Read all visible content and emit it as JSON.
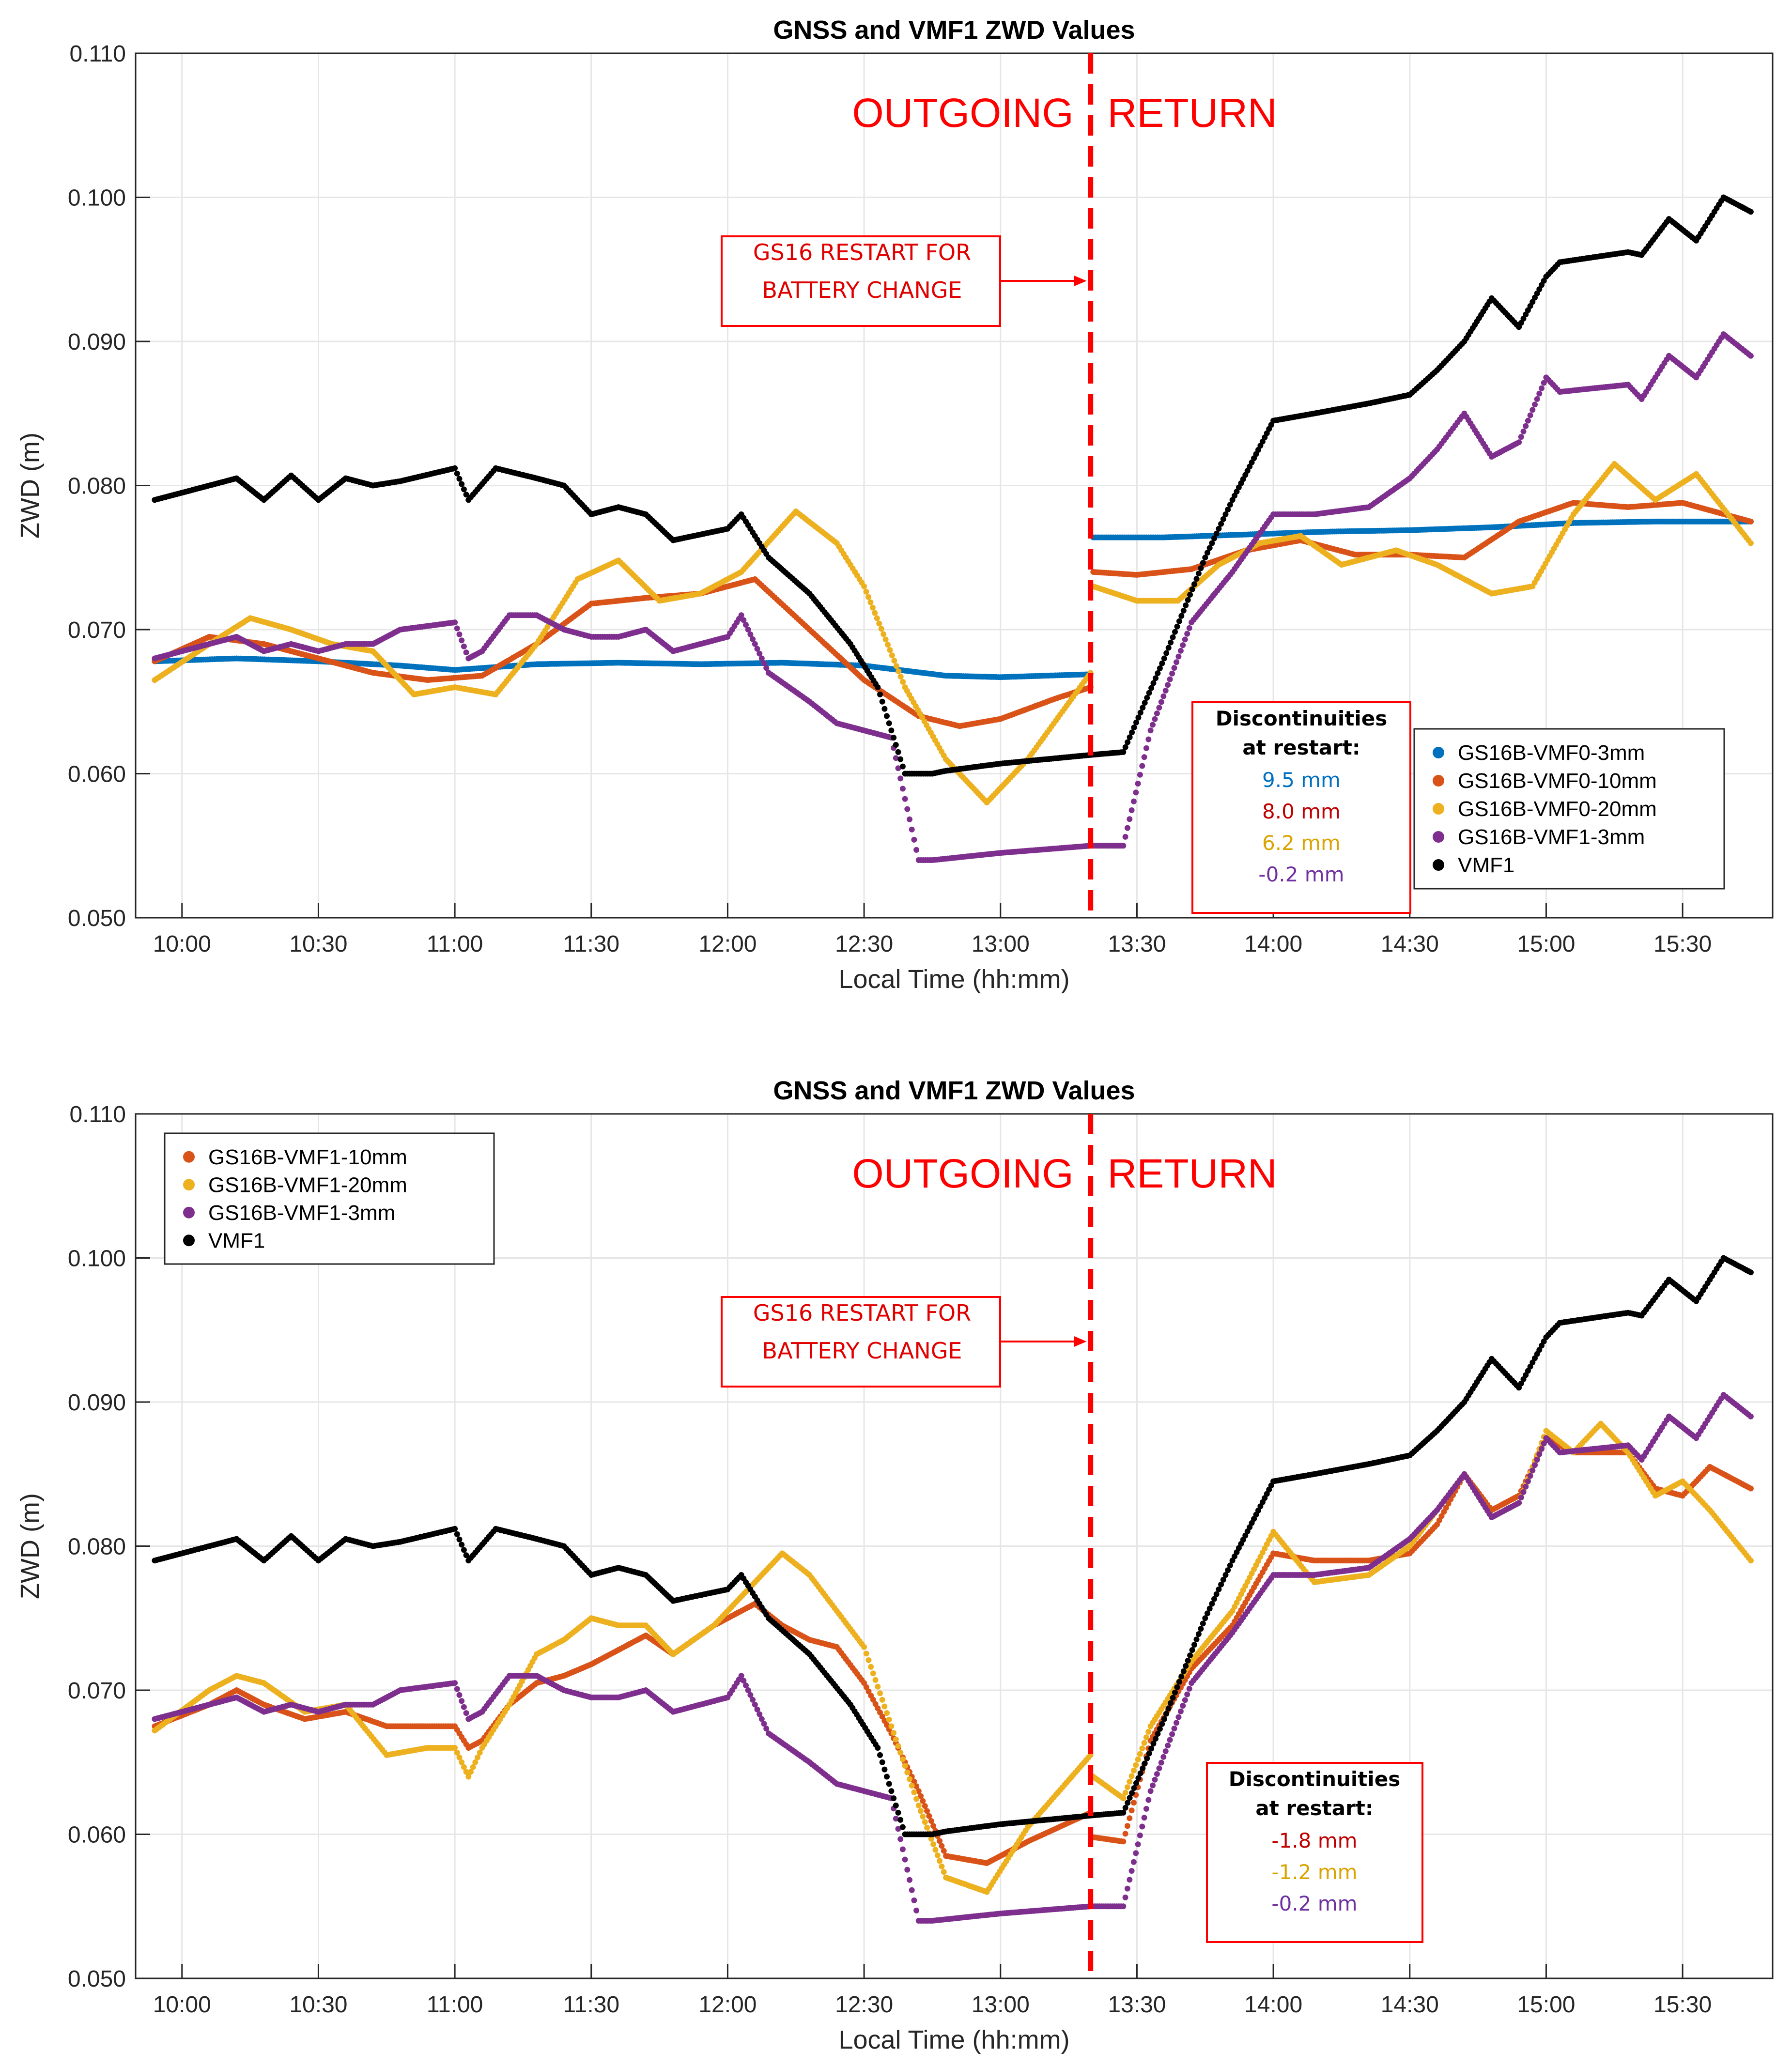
{
  "colors": {
    "GS16B-VMF0-3mm": "#0072BD",
    "GS16B-VMF0-10mm": "#D95319",
    "GS16B-VMF0-20mm": "#EDB120",
    "GS16B-VMF1-3mm": "#7E2F8E",
    "GS16B-VMF1-10mm": "#D95319",
    "GS16B-VMF1-20mm": "#EDB120",
    "VMF1": "#000000",
    "annotation_red": "#ff0000"
  },
  "chart_data": [
    {
      "type": "scatter",
      "title": "GNSS and VMF1 ZWD Values",
      "xlabel": "Local Time (hh:mm)",
      "ylabel": "ZWD (m)",
      "xlim": [
        9.83,
        15.83
      ],
      "ylim": [
        0.05,
        0.11
      ],
      "grid": true,
      "xticks": [
        "10:00",
        "10:30",
        "11:00",
        "11:30",
        "12:00",
        "12:30",
        "13:00",
        "13:30",
        "14:00",
        "14:30",
        "15:00",
        "15:30"
      ],
      "yticks": [
        "0.050",
        "0.060",
        "0.070",
        "0.080",
        "0.090",
        "0.100",
        "0.110"
      ],
      "phase_left": "OUTGOING",
      "phase_right": "RETURN",
      "restart_line_x": 13.33,
      "restart_note": [
        "GS16 RESTART FOR",
        "BATTERY CHANGE"
      ],
      "discontinuity_title": [
        "Discontinuities",
        "at restart:"
      ],
      "discontinuities": [
        {
          "series": "GS16B-VMF0-3mm",
          "text": "9.5 mm"
        },
        {
          "series": "GS16B-VMF0-10mm",
          "text": "8.0 mm"
        },
        {
          "series": "GS16B-VMF0-20mm",
          "text": "6.2 mm"
        },
        {
          "series": "GS16B-VMF1-3mm",
          "text": "-0.2 mm"
        }
      ],
      "legend_position": "lower-right",
      "legend": [
        "GS16B-VMF0-3mm",
        "GS16B-VMF0-10mm",
        "GS16B-VMF0-20mm",
        "GS16B-VMF1-3mm",
        "VMF1"
      ],
      "series": [
        {
          "name": "VMF1",
          "x": [
            9.9,
            10.2,
            10.3,
            10.4,
            10.5,
            10.6,
            10.7,
            10.8,
            11.0,
            11.05,
            11.15,
            11.3,
            11.4,
            11.5,
            11.6,
            11.7,
            11.8,
            12.0,
            12.05,
            12.15,
            12.3,
            12.45,
            12.55,
            12.65,
            12.75,
            12.8,
            13.0,
            13.33,
            13.45,
            13.6,
            13.75,
            13.85,
            14.0,
            14.15,
            14.35,
            14.5,
            14.6,
            14.7,
            14.8,
            14.9,
            15.0,
            15.05,
            15.3,
            15.35,
            15.45,
            15.55,
            15.65,
            15.75
          ],
          "y": [
            0.079,
            0.0805,
            0.079,
            0.0807,
            0.079,
            0.0805,
            0.08,
            0.0803,
            0.0812,
            0.079,
            0.0812,
            0.0805,
            0.08,
            0.078,
            0.0785,
            0.078,
            0.0762,
            0.077,
            0.078,
            0.075,
            0.0725,
            0.069,
            0.066,
            0.06,
            0.06,
            0.0602,
            0.0607,
            0.0613,
            0.0615,
            0.068,
            0.075,
            0.079,
            0.0845,
            0.085,
            0.0857,
            0.0863,
            0.088,
            0.09,
            0.093,
            0.091,
            0.0945,
            0.0955,
            0.0962,
            0.096,
            0.0985,
            0.097,
            0.1,
            0.099
          ]
        },
        {
          "name": "GS16B-VMF1-3mm",
          "x": [
            9.9,
            10.1,
            10.2,
            10.3,
            10.4,
            10.5,
            10.6,
            10.7,
            10.8,
            11.0,
            11.05,
            11.1,
            11.2,
            11.3,
            11.4,
            11.5,
            11.6,
            11.7,
            11.8,
            12.0,
            12.05,
            12.15,
            12.3,
            12.4,
            12.5,
            12.6,
            12.7,
            12.75,
            13.0,
            13.33,
            13.45,
            13.55,
            13.7,
            13.85,
            14.0,
            14.15,
            14.35,
            14.5,
            14.6,
            14.7,
            14.8,
            14.9,
            15.0,
            15.05,
            15.3,
            15.35,
            15.45,
            15.55,
            15.65,
            15.75
          ],
          "y": [
            0.068,
            0.069,
            0.0695,
            0.0685,
            0.069,
            0.0685,
            0.069,
            0.069,
            0.07,
            0.0705,
            0.068,
            0.0685,
            0.071,
            0.071,
            0.07,
            0.0695,
            0.0695,
            0.07,
            0.0685,
            0.0695,
            0.071,
            0.067,
            0.065,
            0.0635,
            0.063,
            0.0625,
            0.054,
            0.054,
            0.0545,
            0.055,
            0.055,
            0.063,
            0.0705,
            0.074,
            0.078,
            0.078,
            0.0785,
            0.0805,
            0.0825,
            0.085,
            0.082,
            0.083,
            0.0875,
            0.0865,
            0.087,
            0.086,
            0.089,
            0.0875,
            0.0905,
            0.089
          ]
        },
        {
          "name": "GS16B-VMF0-3mm",
          "x": [
            9.9,
            10.2,
            10.5,
            10.8,
            11.0,
            11.3,
            11.6,
            11.9,
            12.2,
            12.5,
            12.8,
            13.0,
            13.33,
            13.34,
            13.6,
            13.9,
            14.2,
            14.5,
            14.8,
            15.1,
            15.4,
            15.75
          ],
          "y": [
            0.0678,
            0.068,
            0.0678,
            0.0675,
            0.0672,
            0.0676,
            0.0677,
            0.0676,
            0.0677,
            0.0675,
            0.0668,
            0.0667,
            0.0669,
            0.0764,
            0.0764,
            0.0766,
            0.0768,
            0.0769,
            0.0771,
            0.0774,
            0.0775,
            0.0775
          ]
        },
        {
          "name": "GS16B-VMF0-10mm",
          "x": [
            9.9,
            10.1,
            10.3,
            10.5,
            10.7,
            10.9,
            11.1,
            11.3,
            11.5,
            11.7,
            11.9,
            12.1,
            12.3,
            12.5,
            12.7,
            12.85,
            13.0,
            13.2,
            13.33,
            13.34,
            13.5,
            13.7,
            13.9,
            14.1,
            14.3,
            14.5,
            14.7,
            14.9,
            15.1,
            15.3,
            15.5,
            15.75
          ],
          "y": [
            0.0678,
            0.0695,
            0.069,
            0.068,
            0.067,
            0.0665,
            0.0668,
            0.069,
            0.0718,
            0.0722,
            0.0725,
            0.0735,
            0.07,
            0.0665,
            0.064,
            0.0633,
            0.0638,
            0.0652,
            0.066,
            0.074,
            0.0738,
            0.0742,
            0.0755,
            0.0762,
            0.0752,
            0.0752,
            0.075,
            0.0775,
            0.0788,
            0.0785,
            0.0788,
            0.0775
          ]
        },
        {
          "name": "GS16B-VMF0-20mm",
          "x": [
            9.9,
            10.1,
            10.25,
            10.4,
            10.55,
            10.7,
            10.85,
            11.0,
            11.15,
            11.3,
            11.45,
            11.6,
            11.75,
            11.9,
            12.05,
            12.25,
            12.4,
            12.5,
            12.65,
            12.8,
            12.95,
            13.1,
            13.33,
            13.34,
            13.5,
            13.65,
            13.8,
            13.95,
            14.1,
            14.25,
            14.45,
            14.6,
            14.8,
            14.95,
            15.1,
            15.25,
            15.4,
            15.55,
            15.75
          ],
          "y": [
            0.0665,
            0.069,
            0.0708,
            0.07,
            0.069,
            0.0685,
            0.0655,
            0.066,
            0.0655,
            0.069,
            0.0735,
            0.0748,
            0.072,
            0.0725,
            0.074,
            0.0782,
            0.076,
            0.073,
            0.066,
            0.061,
            0.058,
            0.061,
            0.067,
            0.073,
            0.072,
            0.072,
            0.0745,
            0.076,
            0.0765,
            0.0745,
            0.0755,
            0.0745,
            0.0725,
            0.073,
            0.078,
            0.0815,
            0.079,
            0.0808,
            0.076
          ]
        }
      ]
    },
    {
      "type": "scatter",
      "title": "GNSS and VMF1 ZWD Values",
      "xlabel": "Local Time (hh:mm)",
      "ylabel": "ZWD (m)",
      "xlim": [
        9.83,
        15.83
      ],
      "ylim": [
        0.05,
        0.11
      ],
      "grid": true,
      "xticks": [
        "10:00",
        "10:30",
        "11:00",
        "11:30",
        "12:00",
        "12:30",
        "13:00",
        "13:30",
        "14:00",
        "14:30",
        "15:00",
        "15:30"
      ],
      "yticks": [
        "0.050",
        "0.060",
        "0.070",
        "0.080",
        "0.090",
        "0.100",
        "0.110"
      ],
      "phase_left": "OUTGOING",
      "phase_right": "RETURN",
      "restart_line_x": 13.33,
      "restart_note": [
        "GS16 RESTART FOR",
        "BATTERY CHANGE"
      ],
      "discontinuity_title": [
        "Discontinuities",
        "at restart:"
      ],
      "discontinuities": [
        {
          "series": "GS16B-VMF1-10mm",
          "text": "-1.8 mm"
        },
        {
          "series": "GS16B-VMF1-20mm",
          "text": "-1.2 mm"
        },
        {
          "series": "GS16B-VMF1-3mm",
          "text": "-0.2 mm"
        }
      ],
      "legend_position": "upper-left",
      "legend": [
        "GS16B-VMF1-10mm",
        "GS16B-VMF1-20mm",
        "GS16B-VMF1-3mm",
        "VMF1"
      ],
      "series": [
        {
          "name": "VMF1",
          "x": [
            9.9,
            10.2,
            10.3,
            10.4,
            10.5,
            10.6,
            10.7,
            10.8,
            11.0,
            11.05,
            11.15,
            11.3,
            11.4,
            11.5,
            11.6,
            11.7,
            11.8,
            12.0,
            12.05,
            12.15,
            12.3,
            12.45,
            12.55,
            12.65,
            12.75,
            12.8,
            13.0,
            13.33,
            13.45,
            13.6,
            13.75,
            13.85,
            14.0,
            14.15,
            14.35,
            14.5,
            14.6,
            14.7,
            14.8,
            14.9,
            15.0,
            15.05,
            15.3,
            15.35,
            15.45,
            15.55,
            15.65,
            15.75
          ],
          "y": [
            0.079,
            0.0805,
            0.079,
            0.0807,
            0.079,
            0.0805,
            0.08,
            0.0803,
            0.0812,
            0.079,
            0.0812,
            0.0805,
            0.08,
            0.078,
            0.0785,
            0.078,
            0.0762,
            0.077,
            0.078,
            0.075,
            0.0725,
            0.069,
            0.066,
            0.06,
            0.06,
            0.0602,
            0.0607,
            0.0613,
            0.0615,
            0.068,
            0.075,
            0.079,
            0.0845,
            0.085,
            0.0857,
            0.0863,
            0.088,
            0.09,
            0.093,
            0.091,
            0.0945,
            0.0955,
            0.0962,
            0.096,
            0.0985,
            0.097,
            0.1,
            0.099
          ]
        },
        {
          "name": "GS16B-VMF1-3mm",
          "x": [
            9.9,
            10.1,
            10.2,
            10.3,
            10.4,
            10.5,
            10.6,
            10.7,
            10.8,
            11.0,
            11.05,
            11.1,
            11.2,
            11.3,
            11.4,
            11.5,
            11.6,
            11.7,
            11.8,
            12.0,
            12.05,
            12.15,
            12.3,
            12.4,
            12.5,
            12.6,
            12.7,
            12.75,
            13.0,
            13.33,
            13.45,
            13.55,
            13.7,
            13.85,
            14.0,
            14.15,
            14.35,
            14.5,
            14.6,
            14.7,
            14.8,
            14.9,
            15.0,
            15.05,
            15.3,
            15.35,
            15.45,
            15.55,
            15.65,
            15.75
          ],
          "y": [
            0.068,
            0.069,
            0.0695,
            0.0685,
            0.069,
            0.0685,
            0.069,
            0.069,
            0.07,
            0.0705,
            0.068,
            0.0685,
            0.071,
            0.071,
            0.07,
            0.0695,
            0.0695,
            0.07,
            0.0685,
            0.0695,
            0.071,
            0.067,
            0.065,
            0.0635,
            0.063,
            0.0625,
            0.054,
            0.054,
            0.0545,
            0.055,
            0.055,
            0.063,
            0.0705,
            0.074,
            0.078,
            0.078,
            0.0785,
            0.0805,
            0.0825,
            0.085,
            0.082,
            0.083,
            0.0875,
            0.0865,
            0.087,
            0.086,
            0.089,
            0.0875,
            0.0905,
            0.089
          ]
        },
        {
          "name": "GS16B-VMF1-10mm",
          "x": [
            9.9,
            10.1,
            10.2,
            10.3,
            10.45,
            10.6,
            10.75,
            10.9,
            11.0,
            11.05,
            11.1,
            11.2,
            11.3,
            11.4,
            11.5,
            11.6,
            11.7,
            11.8,
            11.95,
            12.1,
            12.2,
            12.3,
            12.4,
            12.5,
            12.6,
            12.7,
            12.8,
            12.95,
            13.1,
            13.33,
            13.34,
            13.45,
            13.55,
            13.7,
            13.85,
            14.0,
            14.15,
            14.35,
            14.5,
            14.6,
            14.7,
            14.8,
            14.9,
            15.0,
            15.1,
            15.3,
            15.4,
            15.5,
            15.6,
            15.75
          ],
          "y": [
            0.0675,
            0.069,
            0.07,
            0.069,
            0.068,
            0.0685,
            0.0675,
            0.0675,
            0.0675,
            0.066,
            0.0665,
            0.069,
            0.0705,
            0.071,
            0.0718,
            0.0728,
            0.0738,
            0.0725,
            0.0745,
            0.076,
            0.0745,
            0.0735,
            0.073,
            0.0705,
            0.067,
            0.063,
            0.0585,
            0.058,
            0.0595,
            0.0615,
            0.0598,
            0.0595,
            0.0665,
            0.0715,
            0.0745,
            0.0795,
            0.079,
            0.079,
            0.0795,
            0.0815,
            0.085,
            0.0825,
            0.0835,
            0.0875,
            0.0865,
            0.0865,
            0.084,
            0.0835,
            0.0855,
            0.084
          ]
        },
        {
          "name": "GS16B-VMF1-20mm",
          "x": [
            9.9,
            10.1,
            10.2,
            10.3,
            10.45,
            10.6,
            10.75,
            10.9,
            11.0,
            11.05,
            11.1,
            11.2,
            11.3,
            11.4,
            11.5,
            11.6,
            11.7,
            11.8,
            11.95,
            12.1,
            12.2,
            12.3,
            12.4,
            12.5,
            12.6,
            12.7,
            12.8,
            12.95,
            13.1,
            13.33,
            13.34,
            13.45,
            13.55,
            13.7,
            13.85,
            14.0,
            14.15,
            14.35,
            14.5,
            14.6,
            14.7,
            14.8,
            14.9,
            15.0,
            15.1,
            15.2,
            15.3,
            15.4,
            15.5,
            15.6,
            15.75
          ],
          "y": [
            0.0672,
            0.07,
            0.071,
            0.0705,
            0.0685,
            0.069,
            0.0655,
            0.066,
            0.066,
            0.064,
            0.066,
            0.069,
            0.0725,
            0.0735,
            0.075,
            0.0745,
            0.0745,
            0.0725,
            0.0745,
            0.0775,
            0.0795,
            0.078,
            0.0755,
            0.073,
            0.0675,
            0.062,
            0.057,
            0.056,
            0.0605,
            0.0655,
            0.064,
            0.0625,
            0.0675,
            0.072,
            0.0755,
            0.081,
            0.0775,
            0.078,
            0.08,
            0.0825,
            0.085,
            0.082,
            0.083,
            0.088,
            0.0865,
            0.0885,
            0.0865,
            0.0835,
            0.0845,
            0.0825,
            0.079
          ]
        }
      ]
    }
  ]
}
